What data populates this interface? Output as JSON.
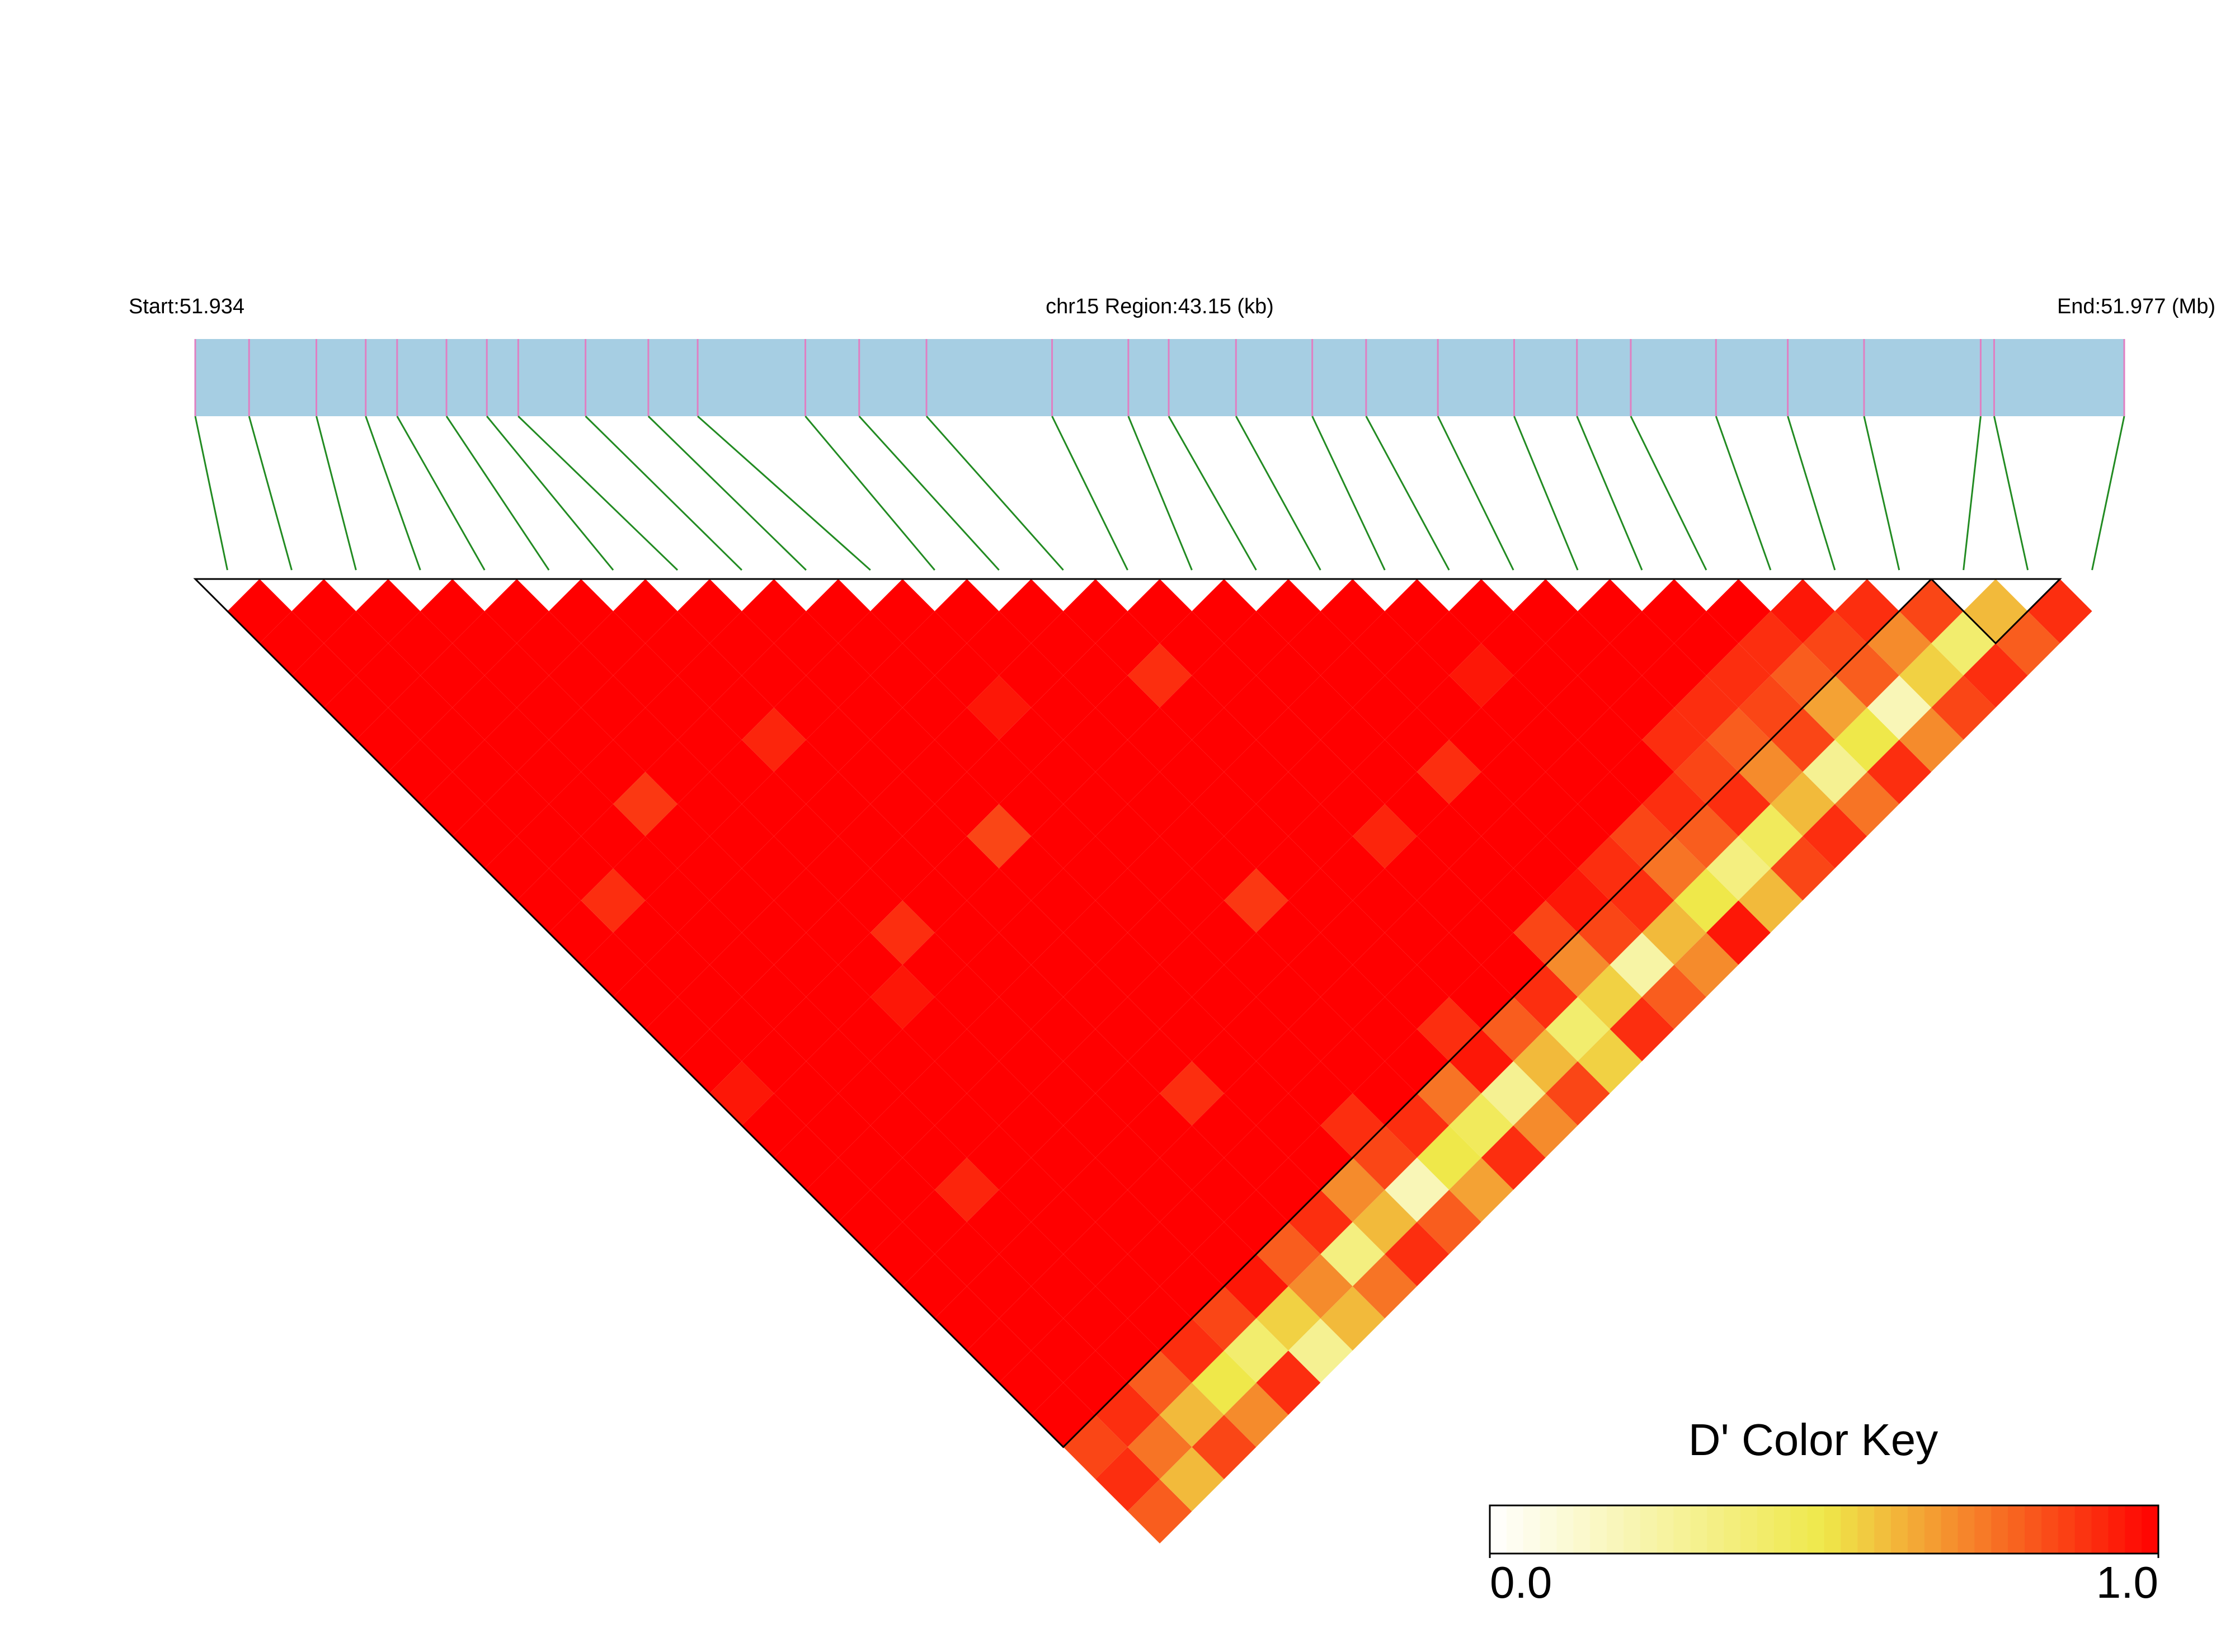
{
  "chart_data": {
    "type": "ld_heatmap",
    "start_label": "Start:51.934",
    "region_label": "chr15 Region:43.15 (kb)",
    "end_label": "End:51.977 (Mb)",
    "xlim": [
      51.934,
      51.977
    ],
    "snp_positions": [
      51.934,
      51.9352,
      51.9367,
      51.9378,
      51.9385,
      51.9396,
      51.9405,
      51.9412,
      51.9427,
      51.9441,
      51.9452,
      51.9476,
      51.9488,
      51.9503,
      51.9531,
      51.9548,
      51.9557,
      51.9572,
      51.9589,
      51.9601,
      51.9617,
      51.9634,
      51.9648,
      51.966,
      51.9679,
      51.9695,
      51.9712,
      51.9738,
      51.9741,
      51.977
    ],
    "bar_color": "#a6cee3",
    "snp_line_color": "#e07fc2",
    "connector_color": "#228b22",
    "blocks": [
      [
        0,
        26
      ],
      [
        27,
        28
      ]
    ],
    "dprime": [
      [
        1,
        1,
        1,
        1,
        1,
        1,
        1,
        1,
        1,
        1,
        1,
        1,
        1,
        1,
        1,
        0.95,
        1,
        1,
        1,
        1,
        1,
        1,
        1,
        1,
        1,
        1,
        0.85,
        0.9,
        0.8
      ],
      [
        1,
        1,
        1,
        1,
        1,
        1,
        1,
        1,
        1,
        0.9,
        1,
        1,
        1,
        1,
        1,
        1,
        1,
        1,
        1,
        1,
        1,
        1,
        1,
        1,
        1,
        0.9,
        0.75,
        0.6
      ],
      [
        1,
        1,
        1,
        1,
        1,
        1,
        1,
        1,
        1,
        1,
        1,
        1,
        1,
        1,
        1,
        1,
        1,
        1,
        0.92,
        1,
        1,
        1,
        1,
        1,
        0.8,
        0.6,
        0.85
      ],
      [
        1,
        1,
        1,
        1,
        1,
        1,
        0.88,
        1,
        1,
        1,
        1,
        1,
        1,
        1,
        1,
        1,
        1,
        1,
        1,
        1,
        1,
        1,
        1,
        0.9,
        0.5,
        0.7
      ],
      [
        1,
        1,
        1,
        1,
        1,
        1,
        1,
        1,
        1,
        1,
        1,
        1,
        0.95,
        1,
        1,
        1,
        1,
        1,
        1,
        1,
        1,
        1,
        0.85,
        0.4,
        0.9
      ],
      [
        1,
        1,
        1,
        1,
        1,
        1,
        1,
        1,
        1,
        1,
        0.9,
        1,
        1,
        1,
        1,
        1,
        1,
        1,
        1,
        1,
        1,
        0.95,
        0.55,
        0.3
      ],
      [
        1,
        1,
        1,
        1,
        0.92,
        1,
        1,
        1,
        1,
        1,
        1,
        1,
        1,
        1,
        1,
        1,
        1,
        1,
        1,
        1,
        0.8,
        0.7,
        0.6
      ],
      [
        1,
        1,
        1,
        1,
        1,
        1,
        1,
        1,
        1,
        1,
        1,
        1,
        1,
        1,
        1,
        0.9,
        1,
        1,
        1,
        0.9,
        0.35,
        0.75
      ],
      [
        1,
        1,
        1,
        1,
        1,
        1,
        1,
        0.85,
        1,
        1,
        1,
        1,
        1,
        1,
        1,
        1,
        1,
        1,
        0.7,
        0.6,
        0.9
      ],
      [
        1,
        1,
        1,
        1,
        1,
        1,
        1,
        1,
        1,
        1,
        1,
        1,
        1,
        1,
        1,
        1,
        0.9,
        0.85,
        0.2,
        0.8
      ],
      [
        1,
        1,
        1,
        0.95,
        1,
        1,
        1,
        1,
        1,
        1,
        1,
        1,
        1,
        1,
        1,
        1,
        0.9,
        0.5,
        0.65
      ],
      [
        1,
        1,
        1,
        1,
        1,
        1,
        1,
        1,
        1,
        0.88,
        1,
        1,
        1,
        1,
        1,
        0.75,
        0.45,
        0.9
      ],
      [
        1,
        1,
        1,
        1,
        1,
        1,
        1,
        1,
        1,
        1,
        1,
        1,
        1,
        0.9,
        0.95,
        0.3,
        0.7
      ],
      [
        1,
        1,
        0.9,
        1,
        1,
        1,
        1,
        1,
        1,
        1,
        1,
        1,
        1,
        0.8,
        0.6,
        0.85
      ],
      [
        1,
        1,
        1,
        1,
        1,
        1,
        1,
        0.92,
        1,
        1,
        1,
        1,
        0.9,
        0.4,
        0.55
      ],
      [
        1,
        1,
        1,
        1,
        1,
        1,
        1,
        1,
        1,
        1,
        0.85,
        0.7,
        0.55,
        0.9
      ],
      [
        1,
        1,
        1,
        1,
        1,
        0.9,
        1,
        1,
        1,
        0.95,
        0.85,
        0.25,
        0.8
      ],
      [
        1,
        1,
        1,
        1,
        1,
        1,
        1,
        1,
        0.9,
        0.9,
        0.6,
        0.7
      ],
      [
        1,
        1,
        0.95,
        1,
        1,
        1,
        1,
        0.85,
        0.75,
        0.5,
        0.95
      ],
      [
        1,
        1,
        1,
        1,
        1,
        1,
        0.9,
        0.8,
        0.35,
        0.6
      ],
      [
        1,
        1,
        1,
        1,
        0.9,
        0.85,
        0.9,
        0.45,
        0.85
      ],
      [
        1,
        1,
        1,
        0.9,
        0.8,
        0.7,
        0.6,
        0.9
      ],
      [
        1,
        1,
        0.9,
        0.85,
        0.85,
        0.3,
        0.75
      ],
      [
        1,
        0.9,
        0.8,
        0.65,
        0.5,
        0.9
      ],
      [
        0.95,
        0.85,
        0.8,
        0.2,
        0.7
      ],
      [
        0.9,
        0.7,
        0.55,
        0.85
      ],
      [
        0.85,
        0.4,
        0.9
      ],
      [
        0.6,
        0.8
      ],
      [
        0.9
      ]
    ],
    "color_key": {
      "title": "D' Color Key",
      "colors": [
        "#ffffff",
        "#efe84a",
        "#ff0000"
      ],
      "range": [
        0,
        1
      ],
      "ticks": [
        {
          "value": 0,
          "label": "0.0"
        },
        {
          "value": 1,
          "label": "1.0"
        }
      ]
    }
  }
}
